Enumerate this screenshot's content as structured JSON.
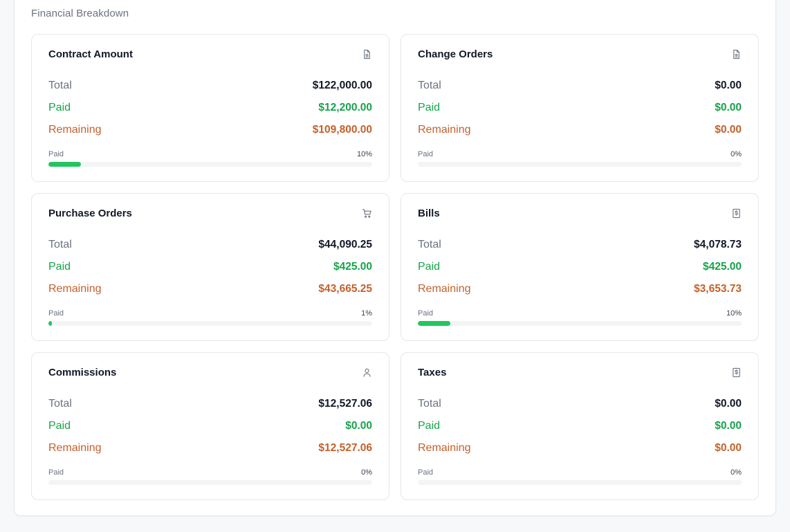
{
  "section": {
    "title": "Financial Breakdown"
  },
  "colors": {
    "paid": "#16a34a",
    "remaining": "#c2612b",
    "progress": "#22c55e"
  },
  "cards": [
    {
      "title": "Contract Amount",
      "icon": "document-icon",
      "total_label": "Total",
      "total": "$122,000.00",
      "paid_label": "Paid",
      "paid": "$12,200.00",
      "remaining_label": "Remaining",
      "remaining": "$109,800.00",
      "progress_label": "Paid",
      "progress_text": "10%",
      "progress": 10
    },
    {
      "title": "Change Orders",
      "icon": "document-icon",
      "total_label": "Total",
      "total": "$0.00",
      "paid_label": "Paid",
      "paid": "$0.00",
      "remaining_label": "Remaining",
      "remaining": "$0.00",
      "progress_label": "Paid",
      "progress_text": "0%",
      "progress": 0
    },
    {
      "title": "Purchase Orders",
      "icon": "cart-icon",
      "total_label": "Total",
      "total": "$44,090.25",
      "paid_label": "Paid",
      "paid": "$425.00",
      "remaining_label": "Remaining",
      "remaining": "$43,665.25",
      "progress_label": "Paid",
      "progress_text": "1%",
      "progress": 1
    },
    {
      "title": "Bills",
      "icon": "dollar-receipt-icon",
      "total_label": "Total",
      "total": "$4,078.73",
      "paid_label": "Paid",
      "paid": "$425.00",
      "remaining_label": "Remaining",
      "remaining": "$3,653.73",
      "progress_label": "Paid",
      "progress_text": "10%",
      "progress": 10
    },
    {
      "title": "Commissions",
      "icon": "user-icon",
      "total_label": "Total",
      "total": "$12,527.06",
      "paid_label": "Paid",
      "paid": "$0.00",
      "remaining_label": "Remaining",
      "remaining": "$12,527.06",
      "progress_label": "Paid",
      "progress_text": "0%",
      "progress": 0
    },
    {
      "title": "Taxes",
      "icon": "dollar-receipt-icon",
      "total_label": "Total",
      "total": "$0.00",
      "paid_label": "Paid",
      "paid": "$0.00",
      "remaining_label": "Remaining",
      "remaining": "$0.00",
      "progress_label": "Paid",
      "progress_text": "0%",
      "progress": 0
    }
  ]
}
